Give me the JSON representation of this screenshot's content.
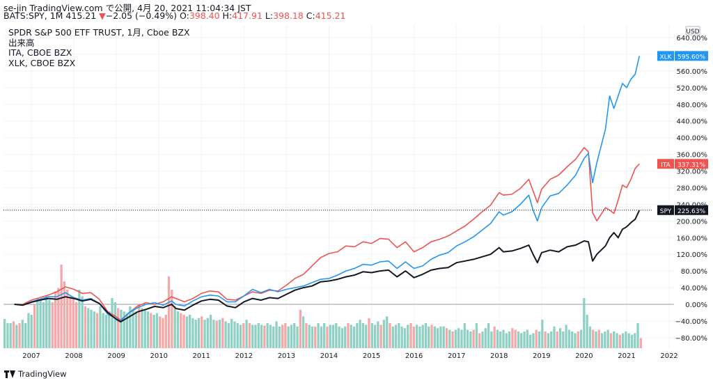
{
  "header": {
    "line1": "se-jin TradingView.com で公開, 4月 20, 2021 11:04:34 JST",
    "symbol": "BATS:SPY, 1M 415.21",
    "change_arrow": "▼",
    "change": "−2.05 (−0.49%)",
    "o_label": " O:",
    "o_val": "398.40",
    "h_label": " H:",
    "h_val": "417.91",
    "l_label": " L:",
    "l_val": "398.18",
    "c_label": " C:",
    "c_val": "415.21"
  },
  "legend": {
    "main": "SPDR S&P 500 ETF TRUST, 1月, Cboe BZX",
    "volume": "出来高",
    "ita": "ITA, CBOE BZX",
    "xlk": "XLK, CBOE BZX"
  },
  "currency": "USD",
  "footer_logo": "TradingView",
  "colors": {
    "spy": "#131722",
    "ita": "#ef5350",
    "xlk": "#2196f3",
    "vol_up": "#8ed1c4",
    "vol_down": "#f4a8a8",
    "grid": "#f0f3fa"
  },
  "chart_data": {
    "type": "line",
    "ylabel_unit": "%",
    "ylim": [
      -100,
      660
    ],
    "yticks": [
      "640.00%",
      "600.00%",
      "560.00%",
      "520.00%",
      "480.00%",
      "440.00%",
      "400.00%",
      "360.00%",
      "320.00%",
      "280.00%",
      "240.00%",
      "200.00%",
      "160.00%",
      "120.00%",
      "80.00%",
      "40.00%",
      "0.00%",
      "−40.00%",
      "−80.00%"
    ],
    "x_labels": [
      "2007",
      "2008",
      "2009",
      "2010",
      "2011",
      "2012",
      "2013",
      "2014",
      "2015",
      "2016",
      "2017",
      "2018",
      "2019",
      "2020",
      "2021",
      "2022"
    ],
    "xlim": [
      2006.6,
      2022.4
    ],
    "series": [
      {
        "name": "SPY",
        "key": "spy",
        "last_label": "225.63%",
        "points": [
          [
            2006.6,
            0
          ],
          [
            2006.8,
            -2
          ],
          [
            2007.0,
            5
          ],
          [
            2007.2,
            10
          ],
          [
            2007.4,
            14
          ],
          [
            2007.6,
            12
          ],
          [
            2007.8,
            18
          ],
          [
            2008.0,
            14
          ],
          [
            2008.2,
            8
          ],
          [
            2008.4,
            12
          ],
          [
            2008.6,
            2
          ],
          [
            2008.8,
            -20
          ],
          [
            2009.0,
            -36
          ],
          [
            2009.1,
            -42
          ],
          [
            2009.3,
            -30
          ],
          [
            2009.5,
            -18
          ],
          [
            2009.7,
            -12
          ],
          [
            2009.9,
            -5
          ],
          [
            2010.1,
            -8
          ],
          [
            2010.3,
            0
          ],
          [
            2010.4,
            -10
          ],
          [
            2010.6,
            -14
          ],
          [
            2010.8,
            -2
          ],
          [
            2011.0,
            8
          ],
          [
            2011.2,
            12
          ],
          [
            2011.4,
            10
          ],
          [
            2011.6,
            -4
          ],
          [
            2011.8,
            -8
          ],
          [
            2012.0,
            6
          ],
          [
            2012.2,
            14
          ],
          [
            2012.4,
            10
          ],
          [
            2012.6,
            16
          ],
          [
            2012.8,
            14
          ],
          [
            2013.0,
            24
          ],
          [
            2013.2,
            34
          ],
          [
            2013.4,
            40
          ],
          [
            2013.6,
            44
          ],
          [
            2013.8,
            54
          ],
          [
            2014.0,
            56
          ],
          [
            2014.2,
            60
          ],
          [
            2014.4,
            66
          ],
          [
            2014.6,
            70
          ],
          [
            2014.8,
            78
          ],
          [
            2015.0,
            76
          ],
          [
            2015.2,
            80
          ],
          [
            2015.4,
            82
          ],
          [
            2015.6,
            66
          ],
          [
            2015.8,
            80
          ],
          [
            2016.0,
            64
          ],
          [
            2016.2,
            72
          ],
          [
            2016.4,
            82
          ],
          [
            2016.6,
            86
          ],
          [
            2016.8,
            88
          ],
          [
            2017.0,
            100
          ],
          [
            2017.2,
            104
          ],
          [
            2017.4,
            108
          ],
          [
            2017.6,
            114
          ],
          [
            2017.8,
            120
          ],
          [
            2018.0,
            136
          ],
          [
            2018.1,
            126
          ],
          [
            2018.3,
            128
          ],
          [
            2018.5,
            134
          ],
          [
            2018.7,
            142
          ],
          [
            2018.8,
            120
          ],
          [
            2018.9,
            100
          ],
          [
            2019.0,
            124
          ],
          [
            2019.2,
            130
          ],
          [
            2019.4,
            126
          ],
          [
            2019.6,
            138
          ],
          [
            2019.8,
            142
          ],
          [
            2020.0,
            152
          ],
          [
            2020.1,
            150
          ],
          [
            2020.2,
            104
          ],
          [
            2020.3,
            120
          ],
          [
            2020.5,
            140
          ],
          [
            2020.6,
            160
          ],
          [
            2020.7,
            172
          ],
          [
            2020.8,
            160
          ],
          [
            2020.9,
            180
          ],
          [
            2021.0,
            186
          ],
          [
            2021.1,
            196
          ],
          [
            2021.2,
            204
          ],
          [
            2021.3,
            226
          ]
        ]
      },
      {
        "name": "ITA",
        "key": "ita",
        "last_label": "337.31%",
        "points": [
          [
            2006.6,
            0
          ],
          [
            2006.8,
            0
          ],
          [
            2007.0,
            10
          ],
          [
            2007.2,
            16
          ],
          [
            2007.4,
            22
          ],
          [
            2007.6,
            30
          ],
          [
            2007.8,
            42
          ],
          [
            2008.0,
            36
          ],
          [
            2008.2,
            26
          ],
          [
            2008.4,
            28
          ],
          [
            2008.6,
            12
          ],
          [
            2008.8,
            -18
          ],
          [
            2009.0,
            -30
          ],
          [
            2009.1,
            -38
          ],
          [
            2009.3,
            -20
          ],
          [
            2009.5,
            -4
          ],
          [
            2009.7,
            4
          ],
          [
            2009.9,
            0
          ],
          [
            2010.1,
            6
          ],
          [
            2010.3,
            18
          ],
          [
            2010.4,
            14
          ],
          [
            2010.6,
            6
          ],
          [
            2010.8,
            14
          ],
          [
            2011.0,
            26
          ],
          [
            2011.2,
            32
          ],
          [
            2011.4,
            30
          ],
          [
            2011.6,
            12
          ],
          [
            2011.8,
            10
          ],
          [
            2012.0,
            20
          ],
          [
            2012.2,
            30
          ],
          [
            2012.4,
            26
          ],
          [
            2012.6,
            34
          ],
          [
            2012.8,
            32
          ],
          [
            2013.0,
            46
          ],
          [
            2013.2,
            62
          ],
          [
            2013.4,
            72
          ],
          [
            2013.6,
            92
          ],
          [
            2013.8,
            112
          ],
          [
            2014.0,
            122
          ],
          [
            2014.2,
            126
          ],
          [
            2014.4,
            140
          ],
          [
            2014.6,
            138
          ],
          [
            2014.8,
            150
          ],
          [
            2015.0,
            146
          ],
          [
            2015.2,
            158
          ],
          [
            2015.4,
            156
          ],
          [
            2015.6,
            136
          ],
          [
            2015.8,
            150
          ],
          [
            2016.0,
            126
          ],
          [
            2016.2,
            136
          ],
          [
            2016.4,
            150
          ],
          [
            2016.6,
            156
          ],
          [
            2016.8,
            164
          ],
          [
            2017.0,
            176
          ],
          [
            2017.2,
            188
          ],
          [
            2017.4,
            204
          ],
          [
            2017.6,
            222
          ],
          [
            2017.8,
            238
          ],
          [
            2018.0,
            268
          ],
          [
            2018.1,
            262
          ],
          [
            2018.3,
            264
          ],
          [
            2018.5,
            278
          ],
          [
            2018.7,
            300
          ],
          [
            2018.8,
            272
          ],
          [
            2018.9,
            244
          ],
          [
            2019.0,
            276
          ],
          [
            2019.2,
            300
          ],
          [
            2019.4,
            310
          ],
          [
            2019.6,
            330
          ],
          [
            2019.8,
            348
          ],
          [
            2020.0,
            376
          ],
          [
            2020.1,
            366
          ],
          [
            2020.2,
            220
          ],
          [
            2020.3,
            200
          ],
          [
            2020.5,
            232
          ],
          [
            2020.6,
            226
          ],
          [
            2020.7,
            218
          ],
          [
            2020.8,
            250
          ],
          [
            2020.9,
            286
          ],
          [
            2021.0,
            280
          ],
          [
            2021.1,
            300
          ],
          [
            2021.2,
            326
          ],
          [
            2021.3,
            337
          ]
        ]
      },
      {
        "name": "XLK",
        "key": "xlk",
        "last_label": "595.60%",
        "points": [
          [
            2006.6,
            0
          ],
          [
            2006.8,
            -2
          ],
          [
            2007.0,
            6
          ],
          [
            2007.2,
            12
          ],
          [
            2007.4,
            18
          ],
          [
            2007.6,
            18
          ],
          [
            2007.8,
            28
          ],
          [
            2008.0,
            16
          ],
          [
            2008.2,
            10
          ],
          [
            2008.4,
            14
          ],
          [
            2008.6,
            2
          ],
          [
            2008.8,
            -24
          ],
          [
            2009.0,
            -34
          ],
          [
            2009.1,
            -40
          ],
          [
            2009.3,
            -20
          ],
          [
            2009.5,
            -8
          ],
          [
            2009.7,
            0
          ],
          [
            2009.9,
            4
          ],
          [
            2010.1,
            -2
          ],
          [
            2010.3,
            8
          ],
          [
            2010.4,
            0
          ],
          [
            2010.6,
            -4
          ],
          [
            2010.8,
            8
          ],
          [
            2011.0,
            18
          ],
          [
            2011.2,
            22
          ],
          [
            2011.4,
            20
          ],
          [
            2011.6,
            6
          ],
          [
            2011.8,
            6
          ],
          [
            2012.0,
            20
          ],
          [
            2012.2,
            36
          ],
          [
            2012.4,
            28
          ],
          [
            2012.6,
            36
          ],
          [
            2012.8,
            30
          ],
          [
            2013.0,
            36
          ],
          [
            2013.2,
            40
          ],
          [
            2013.4,
            44
          ],
          [
            2013.6,
            52
          ],
          [
            2013.8,
            60
          ],
          [
            2014.0,
            62
          ],
          [
            2014.2,
            70
          ],
          [
            2014.4,
            80
          ],
          [
            2014.6,
            86
          ],
          [
            2014.8,
            96
          ],
          [
            2015.0,
            94
          ],
          [
            2015.2,
            102
          ],
          [
            2015.4,
            104
          ],
          [
            2015.6,
            86
          ],
          [
            2015.8,
            102
          ],
          [
            2016.0,
            86
          ],
          [
            2016.2,
            92
          ],
          [
            2016.4,
            108
          ],
          [
            2016.6,
            118
          ],
          [
            2016.8,
            124
          ],
          [
            2017.0,
            140
          ],
          [
            2017.2,
            150
          ],
          [
            2017.4,
            162
          ],
          [
            2017.6,
            178
          ],
          [
            2017.8,
            194
          ],
          [
            2018.0,
            222
          ],
          [
            2018.1,
            214
          ],
          [
            2018.3,
            222
          ],
          [
            2018.5,
            240
          ],
          [
            2018.7,
            262
          ],
          [
            2018.8,
            226
          ],
          [
            2018.9,
            200
          ],
          [
            2019.0,
            232
          ],
          [
            2019.2,
            260
          ],
          [
            2019.4,
            266
          ],
          [
            2019.6,
            286
          ],
          [
            2019.8,
            310
          ],
          [
            2020.0,
            350
          ],
          [
            2020.1,
            362
          ],
          [
            2020.2,
            292
          ],
          [
            2020.3,
            340
          ],
          [
            2020.5,
            420
          ],
          [
            2020.6,
            500
          ],
          [
            2020.7,
            470
          ],
          [
            2020.8,
            500
          ],
          [
            2020.9,
            530
          ],
          [
            2021.0,
            520
          ],
          [
            2021.1,
            540
          ],
          [
            2021.2,
            552
          ],
          [
            2021.3,
            596
          ]
        ]
      }
    ],
    "volume": {
      "note": "Monthly SPY volume bars (relative height 0-1 of volume pane)",
      "bars": [
        0.35,
        0.3,
        0.3,
        0.32,
        0.28,
        0.3,
        0.34,
        0.3,
        0.42,
        0.4,
        0.52,
        0.6,
        0.58,
        0.55,
        0.62,
        0.58,
        0.55,
        0.68,
        0.72,
        1.0,
        0.8,
        0.7,
        0.62,
        0.6,
        0.55,
        0.7,
        0.62,
        0.5,
        0.48,
        0.46,
        0.44,
        0.42,
        0.5,
        0.42,
        0.4,
        0.44,
        0.6,
        0.55,
        0.48,
        0.46,
        0.44,
        0.42,
        0.5,
        0.46,
        0.44,
        0.52,
        0.48,
        0.46,
        0.44,
        0.42,
        0.4,
        0.42,
        0.38,
        0.36,
        0.4,
        0.86,
        0.7,
        0.5,
        0.44,
        0.42,
        0.4,
        0.38,
        0.4,
        0.36,
        0.34,
        0.36,
        0.38,
        0.34,
        0.36,
        0.4,
        0.34,
        0.33,
        0.34,
        0.36,
        0.32,
        0.3,
        0.35,
        0.32,
        0.3,
        0.28,
        0.3,
        0.34,
        0.3,
        0.28,
        0.28,
        0.3,
        0.28,
        0.27,
        0.3,
        0.28,
        0.26,
        0.32,
        0.26,
        0.28,
        0.3,
        0.26,
        0.28,
        0.3,
        0.26,
        0.46,
        0.38,
        0.3,
        0.28,
        0.26,
        0.26,
        0.3,
        0.26,
        0.3,
        0.26,
        0.28,
        0.28,
        0.3,
        0.26,
        0.24,
        0.26,
        0.3,
        0.28,
        0.26,
        0.3,
        0.34,
        0.3,
        0.28,
        0.36,
        0.3,
        0.28,
        0.32,
        0.28,
        0.34,
        0.38,
        0.3,
        0.26,
        0.28,
        0.3,
        0.26,
        0.24,
        0.28,
        0.3,
        0.26,
        0.28,
        0.26,
        0.28,
        0.3,
        0.26,
        0.28,
        0.26,
        0.24,
        0.26,
        0.26,
        0.24,
        0.22,
        0.2,
        0.22,
        0.24,
        0.22,
        0.3,
        0.22,
        0.2,
        0.22,
        0.3,
        0.18,
        0.2,
        0.24,
        0.3,
        0.2,
        0.26,
        0.22,
        0.2,
        0.22,
        0.18,
        0.2,
        0.24,
        0.22,
        0.2,
        0.18,
        0.2,
        0.22,
        0.16,
        0.18,
        0.22,
        0.2,
        0.34,
        0.2,
        0.18,
        0.2,
        0.26,
        0.2,
        0.24,
        0.2,
        0.28,
        0.22,
        0.2,
        0.18,
        0.2,
        0.22,
        0.6,
        0.4,
        0.26,
        0.22,
        0.2,
        0.22,
        0.18,
        0.2,
        0.22,
        0.18,
        0.2,
        0.18,
        0.16,
        0.18,
        0.2,
        0.18,
        0.16,
        0.18,
        0.3,
        0.12
      ]
    }
  }
}
